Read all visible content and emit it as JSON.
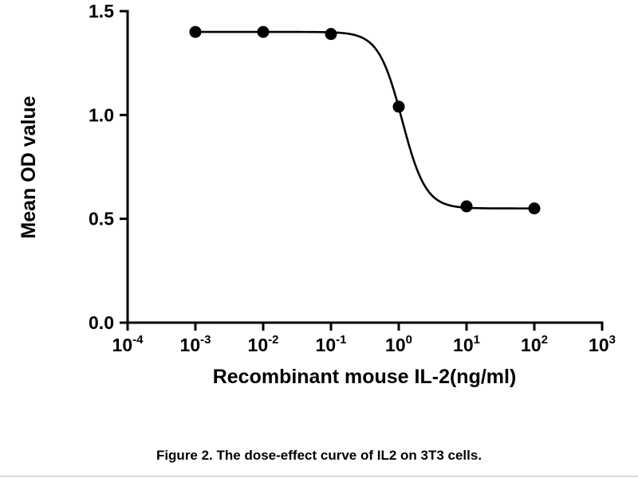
{
  "caption": "Figure 2. The dose-effect curve of IL2 on 3T3 cells.",
  "chart_data": {
    "type": "line",
    "subtype": "dose-response-scatter-with-fit",
    "title": "",
    "xlabel": "Recombinant mouse IL-2(ng/ml)",
    "ylabel": "Mean OD value",
    "x_scale": "log10",
    "x_tick_base": "10",
    "x_tick_exponents": [
      -4,
      -3,
      -2,
      -1,
      0,
      1,
      2,
      3
    ],
    "xlim_exponents": [
      -4,
      3
    ],
    "ylim": [
      0,
      1.5
    ],
    "y_ticks": [
      0.0,
      0.5,
      1.0,
      1.5
    ],
    "y_tick_labels": [
      "0.0",
      "0.5",
      "1.0",
      "1.5"
    ],
    "grid": "off",
    "legend": "none",
    "points": {
      "x_exponents": [
        -3,
        -2,
        -1,
        0,
        1,
        2
      ],
      "y": [
        1.4,
        1.4,
        1.39,
        1.04,
        0.56,
        0.55
      ]
    },
    "fit_curve": {
      "model": "four-parameter-logistic",
      "top": 1.4,
      "bottom": 0.55,
      "log_ec50": 0.05,
      "hill_slope": 2.5,
      "x_range_exponents": [
        -3,
        2
      ]
    },
    "marker": {
      "shape": "circle",
      "color": "#000000",
      "radius": 7.5
    },
    "line_color": "#000000",
    "axis_color": "#000000",
    "background": "#ffffff"
  }
}
